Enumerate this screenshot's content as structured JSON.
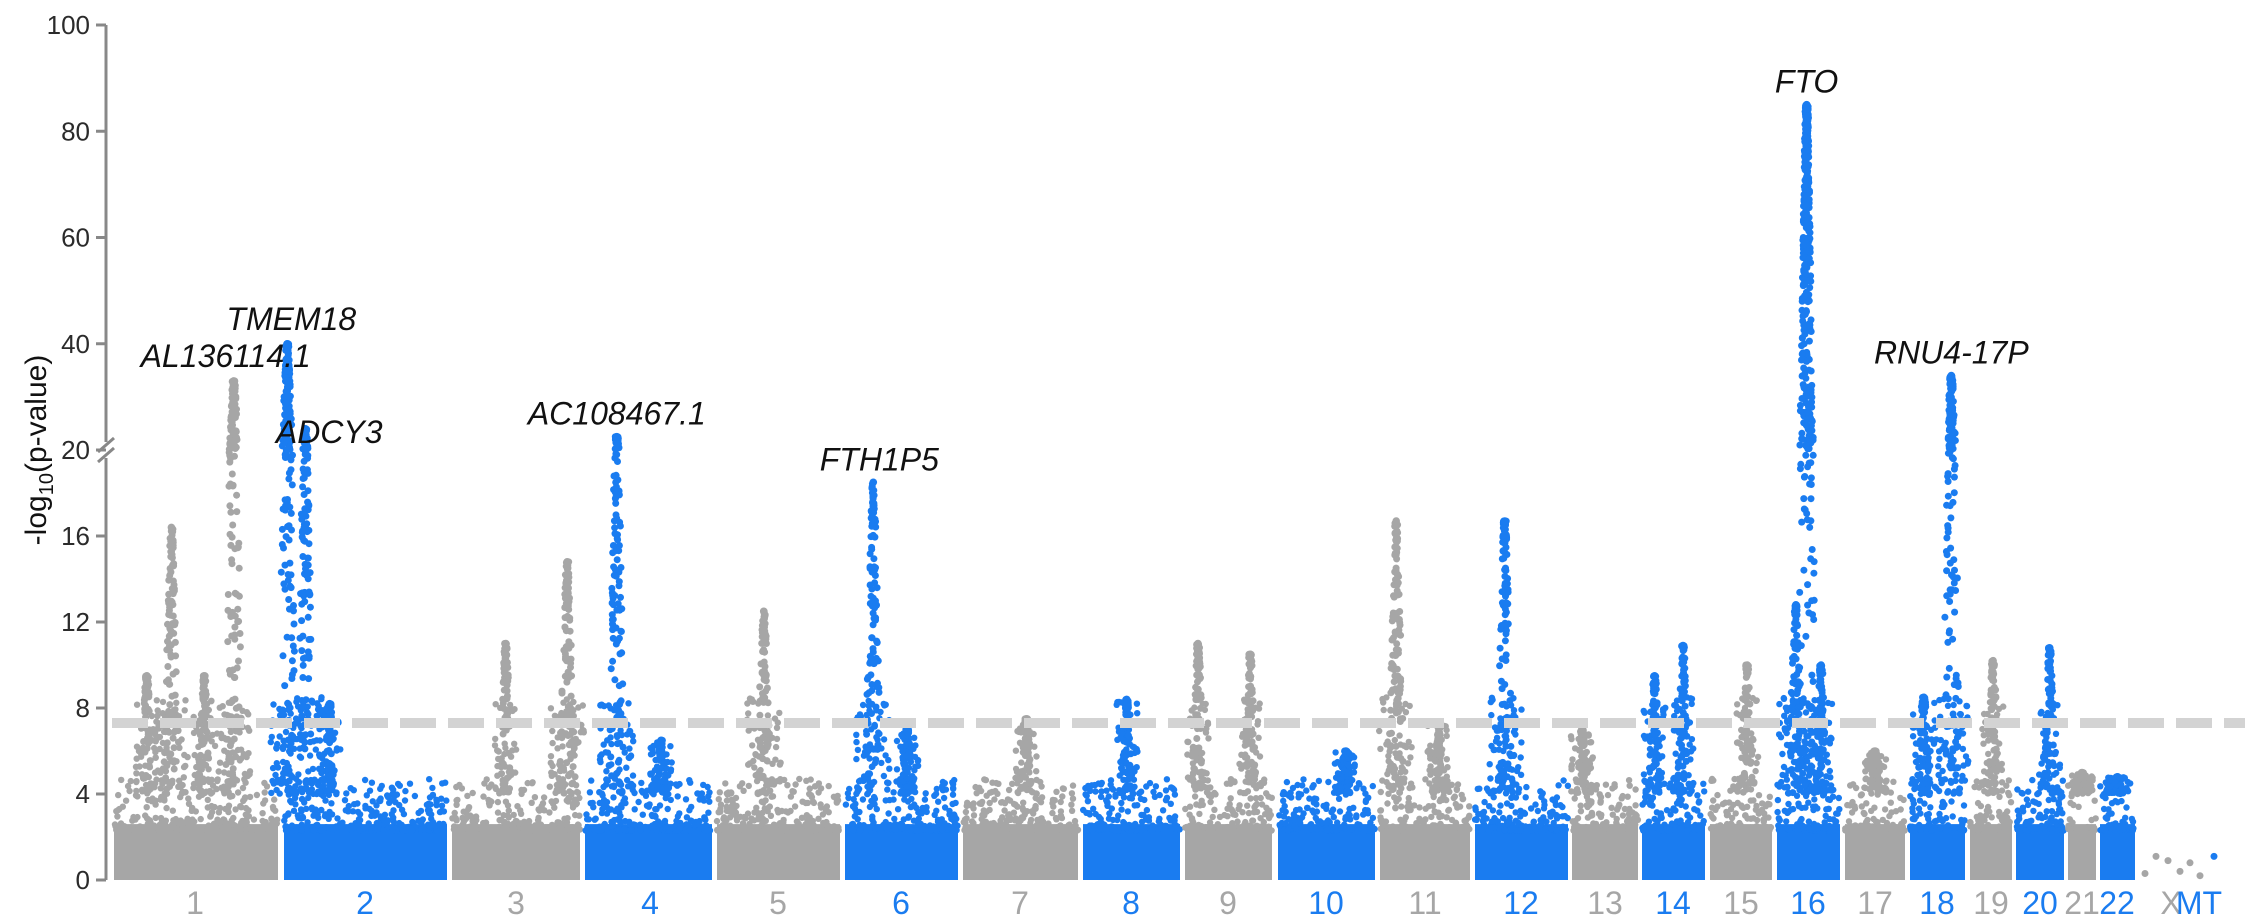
{
  "chart_data": {
    "type": "scatter",
    "subtype": "manhattan",
    "ylabel_parts": [
      "-log",
      "10",
      "(p-value)"
    ],
    "y_axis": {
      "broken": true,
      "break_at": 20,
      "lower_range": [
        0,
        20
      ],
      "upper_range": [
        20,
        100
      ],
      "lower_ticks": [
        0,
        4,
        8,
        12,
        16,
        20
      ],
      "upper_ticks": [
        40,
        60,
        80,
        100
      ]
    },
    "significance_threshold": 7.3,
    "colors": {
      "odd": "#a6a6a6",
      "even": "#1a7cf0",
      "threshold": "#d3d3d3",
      "axis": "#888888"
    },
    "chromosomes": [
      {
        "name": "1",
        "color": "odd"
      },
      {
        "name": "2",
        "color": "even"
      },
      {
        "name": "3",
        "color": "odd"
      },
      {
        "name": "4",
        "color": "even"
      },
      {
        "name": "5",
        "color": "odd"
      },
      {
        "name": "6",
        "color": "even"
      },
      {
        "name": "7",
        "color": "odd"
      },
      {
        "name": "8",
        "color": "even"
      },
      {
        "name": "9",
        "color": "odd"
      },
      {
        "name": "10",
        "color": "even"
      },
      {
        "name": "11",
        "color": "odd"
      },
      {
        "name": "12",
        "color": "even"
      },
      {
        "name": "13",
        "color": "odd"
      },
      {
        "name": "14",
        "color": "even"
      },
      {
        "name": "15",
        "color": "odd"
      },
      {
        "name": "16",
        "color": "even"
      },
      {
        "name": "17",
        "color": "odd"
      },
      {
        "name": "18",
        "color": "even"
      },
      {
        "name": "19",
        "color": "odd"
      },
      {
        "name": "20",
        "color": "even"
      },
      {
        "name": "21",
        "color": "odd"
      },
      {
        "name": "22",
        "color": "even"
      },
      {
        "name": "X",
        "color": "odd"
      },
      {
        "name": "MT",
        "color": "even"
      }
    ],
    "peaks": [
      {
        "chr": "1",
        "pos": 0.35,
        "max": 16.4
      },
      {
        "chr": "1",
        "pos": 0.2,
        "max": 9.5
      },
      {
        "chr": "1",
        "pos": 0.55,
        "max": 9.5
      },
      {
        "chr": "1",
        "pos": 0.73,
        "max": 33
      },
      {
        "chr": "2",
        "pos": 0.02,
        "max": 40
      },
      {
        "chr": "2",
        "pos": 0.13,
        "max": 24
      },
      {
        "chr": "2",
        "pos": 0.28,
        "max": 8.2
      },
      {
        "chr": "3",
        "pos": 0.42,
        "max": 11
      },
      {
        "chr": "3",
        "pos": 0.9,
        "max": 14.8
      },
      {
        "chr": "4",
        "pos": 0.25,
        "max": 22.5
      },
      {
        "chr": "4",
        "pos": 0.6,
        "max": 6.5
      },
      {
        "chr": "5",
        "pos": 0.38,
        "max": 12.5
      },
      {
        "chr": "6",
        "pos": 0.25,
        "max": 18.5
      },
      {
        "chr": "6",
        "pos": 0.55,
        "max": 7
      },
      {
        "chr": "7",
        "pos": 0.55,
        "max": 7.5
      },
      {
        "chr": "8",
        "pos": 0.45,
        "max": 8.4
      },
      {
        "chr": "9",
        "pos": 0.15,
        "max": 11
      },
      {
        "chr": "9",
        "pos": 0.75,
        "max": 10.5
      },
      {
        "chr": "10",
        "pos": 0.7,
        "max": 6
      },
      {
        "chr": "11",
        "pos": 0.18,
        "max": 16.7
      },
      {
        "chr": "11",
        "pos": 0.65,
        "max": 7.2
      },
      {
        "chr": "12",
        "pos": 0.32,
        "max": 16.7
      },
      {
        "chr": "13",
        "pos": 0.15,
        "max": 7
      },
      {
        "chr": "14",
        "pos": 0.2,
        "max": 9.5
      },
      {
        "chr": "14",
        "pos": 0.65,
        "max": 10.9
      },
      {
        "chr": "15",
        "pos": 0.6,
        "max": 10
      },
      {
        "chr": "16",
        "pos": 0.3,
        "max": 12.8
      },
      {
        "chr": "16",
        "pos": 0.47,
        "max": 85
      },
      {
        "chr": "16",
        "pos": 0.7,
        "max": 10
      },
      {
        "chr": "17",
        "pos": 0.5,
        "max": 6
      },
      {
        "chr": "18",
        "pos": 0.25,
        "max": 8.5
      },
      {
        "chr": "18",
        "pos": 0.75,
        "max": 34
      },
      {
        "chr": "19",
        "pos": 0.55,
        "max": 10.2
      },
      {
        "chr": "20",
        "pos": 0.7,
        "max": 10.8
      },
      {
        "chr": "21",
        "pos": 0.5,
        "max": 5
      },
      {
        "chr": "22",
        "pos": 0.5,
        "max": 4.8
      }
    ],
    "annotations": [
      {
        "label": "AL136114.1",
        "chr": "1",
        "pos": 0.73,
        "y": 33
      },
      {
        "label": "TMEM18",
        "chr": "2",
        "pos": 0.02,
        "y": 40
      },
      {
        "label": "ADCY3",
        "chr": "2",
        "pos": 0.13,
        "y": 24
      },
      {
        "label": "AC108467.1",
        "chr": "4",
        "pos": 0.25,
        "y": 22.5
      },
      {
        "label": "FTH1P5",
        "chr": "6",
        "pos": 0.25,
        "y": 18.5
      },
      {
        "label": "FTO",
        "chr": "16",
        "pos": 0.47,
        "y": 85
      },
      {
        "label": "RNU4-17P",
        "chr": "18",
        "pos": 0.75,
        "y": 34
      }
    ],
    "grid": false,
    "legend": "none"
  }
}
